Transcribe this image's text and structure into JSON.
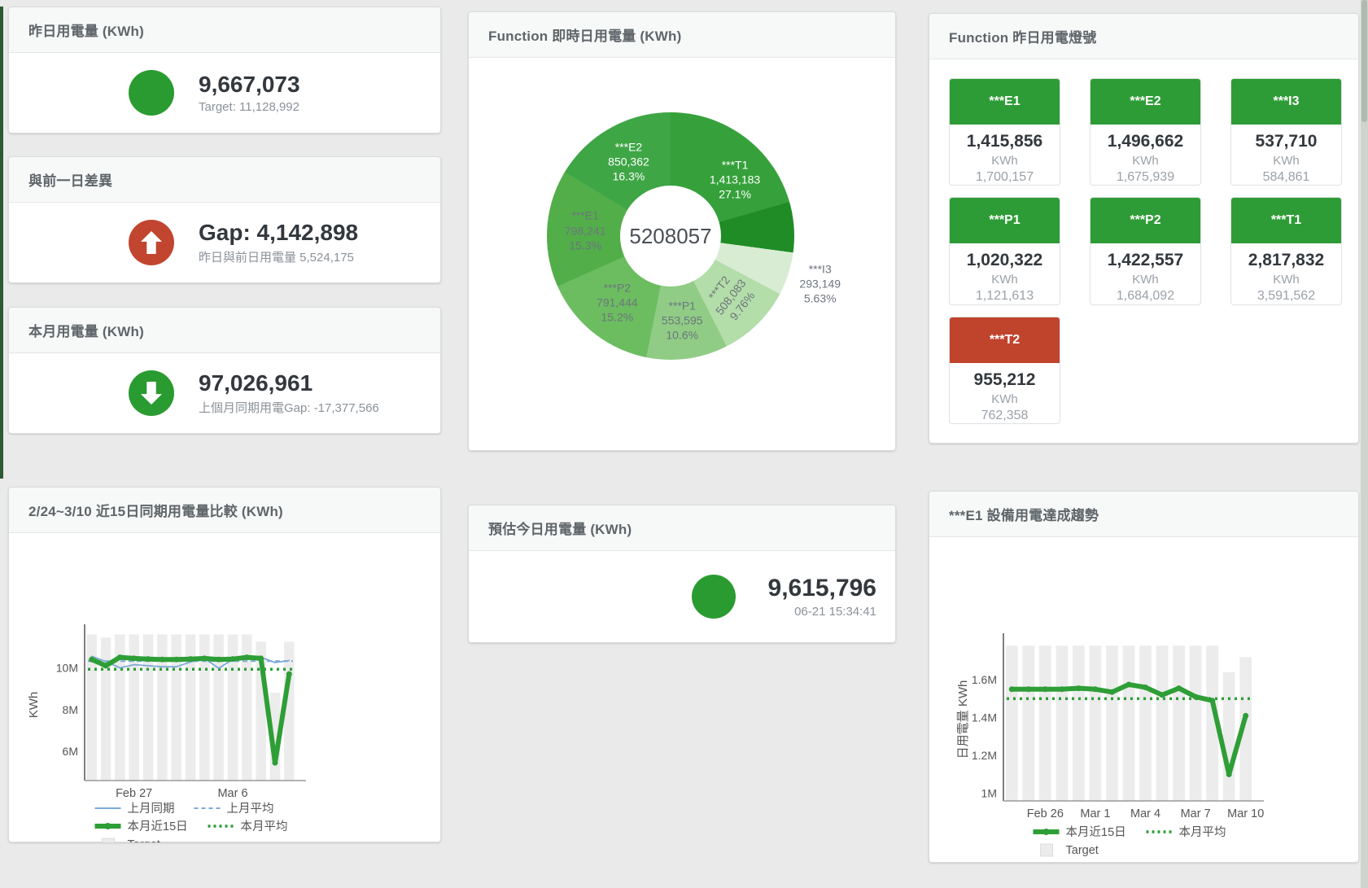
{
  "page": {
    "background": "#e9eae9",
    "accent_color": "#2c5a33",
    "status_green": "#2a9b30",
    "status_red": "#c1452f"
  },
  "kpi_cards": [
    {
      "id": "yesterday",
      "title": "昨日用電量 (KWh)",
      "value": "9,667,073",
      "subtext": "Target: 11,128,992",
      "circle_color": "#2a9b30",
      "icon": "none"
    },
    {
      "id": "gap",
      "title": "與前一日差異",
      "value": "Gap: 4,142,898",
      "subtext": "昨日與前日用電量 5,524,175",
      "circle_color": "#c1452f",
      "icon": "arrow-up"
    },
    {
      "id": "month",
      "title": "本月用電量 (KWh)",
      "value": "97,026,961",
      "subtext": "上個月同期用電Gap: -17,377,566",
      "circle_color": "#2a9b30",
      "icon": "arrow-down"
    },
    {
      "id": "estimate",
      "title": "預估今日用電量 (KWh)",
      "value": "9,615,796",
      "subtext": "06-21 15:34:41",
      "circle_color": "#2a9b30",
      "icon": "none"
    }
  ],
  "lights": {
    "title": "Function 昨日用電燈號",
    "status_colors": {
      "green": "#2e9c36",
      "red": "#c0432c"
    },
    "tiles": [
      {
        "label": "***E1",
        "value": "1,415,856",
        "unit": "KWh",
        "target": "1,700,157",
        "status": "green"
      },
      {
        "label": "***E2",
        "value": "1,496,662",
        "unit": "KWh",
        "target": "1,675,939",
        "status": "green"
      },
      {
        "label": "***I3",
        "value": "537,710",
        "unit": "KWh",
        "target": "584,861",
        "status": "green"
      },
      {
        "label": "***P1",
        "value": "1,020,322",
        "unit": "KWh",
        "target": "1,121,613",
        "status": "green"
      },
      {
        "label": "***P2",
        "value": "1,422,557",
        "unit": "KWh",
        "target": "1,684,092",
        "status": "green"
      },
      {
        "label": "***T1",
        "value": "2,817,832",
        "unit": "KWh",
        "target": "3,591,562",
        "status": "green"
      },
      {
        "label": "***T2",
        "value": "955,212",
        "unit": "KWh",
        "target": "762,358",
        "status": "red"
      }
    ]
  },
  "chart_data": [
    {
      "type": "pie",
      "title": "Function 即時日用電量 (KWh)",
      "total_text": "5208057",
      "legend_position": "none",
      "slices": [
        {
          "name": "***T1",
          "value": 1413183,
          "value_text": "1,413,183",
          "pct": "27.1%",
          "color": "#36a13b",
          "shade_from_deg": 74,
          "shade_color": "#1f8c26",
          "label_color": "#ffffff"
        },
        {
          "name": "***I3",
          "value": 293149,
          "value_text": "293,149",
          "pct": "5.63%",
          "color": "#d7ecd2",
          "label_color": "#6d757d",
          "label_outside": true
        },
        {
          "name": "***T2",
          "value": 508083,
          "value_text": "508,083",
          "pct": "9.76%",
          "color": "#b3dda9",
          "label_color": "#6d757d",
          "rotate": -52
        },
        {
          "name": "***P1",
          "value": 553595,
          "value_text": "553,595",
          "pct": "10.6%",
          "color": "#90cc85",
          "label_color": "#6d757d"
        },
        {
          "name": "***P2",
          "value": 791444,
          "value_text": "791,444",
          "pct": "15.2%",
          "color": "#6cbd60",
          "label_color": "#6d757d"
        },
        {
          "name": "***E1",
          "value": 798241,
          "value_text": "798,241",
          "pct": "15.3%",
          "color": "#52ae49",
          "label_color": "#6d757d"
        },
        {
          "name": "***E2",
          "value": 850362,
          "value_text": "850,362",
          "pct": "16.3%",
          "color": "#3fa646",
          "label_color": "#ffffff"
        }
      ]
    },
    {
      "type": "line",
      "title": "2/24~3/10 近15日同期用電量比較 (KWh)",
      "ylabel": "KWh",
      "unit": "M",
      "ylim": [
        4.6,
        11.85
      ],
      "grid": false,
      "yticks": [
        {
          "v": 10,
          "label": "10M"
        },
        {
          "v": 8,
          "label": "8M"
        },
        {
          "v": 6,
          "label": "6M"
        }
      ],
      "xticks": [
        {
          "index": 3,
          "label": "Feb 27"
        },
        {
          "index": 10,
          "label": "Mar 6"
        }
      ],
      "series": [
        {
          "name": "Target",
          "kind": "bar",
          "color": "#ececec",
          "values": [
            11.6,
            11.45,
            11.6,
            11.6,
            11.6,
            11.6,
            11.6,
            11.6,
            11.6,
            11.6,
            11.6,
            11.6,
            11.25,
            8.8,
            11.25
          ]
        },
        {
          "name": "上月平均",
          "kind": "avg",
          "style": "dashed",
          "color": "#7aa9d8",
          "value": 10.32
        },
        {
          "name": "本月平均",
          "kind": "avg",
          "style": "dotted",
          "color": "#2e9e36",
          "value": 9.93
        },
        {
          "name": "上月同期",
          "kind": "line",
          "style": "solid-thin",
          "color": "#7aa9d8",
          "values": [
            10.55,
            10.3,
            10.0,
            10.15,
            10.1,
            10.05,
            10.05,
            10.28,
            10.45,
            9.98,
            10.4,
            10.5,
            10.5,
            10.25,
            10.35
          ]
        },
        {
          "name": "本月近15日",
          "kind": "line",
          "style": "solid-thick",
          "color": "#2e9e36",
          "values": [
            10.4,
            10.1,
            10.5,
            10.45,
            10.42,
            10.4,
            10.4,
            10.42,
            10.45,
            10.4,
            10.42,
            10.5,
            10.45,
            5.45,
            9.7
          ]
        }
      ],
      "legend_rows": [
        [
          {
            "label": "上月同期",
            "style": "solid-thin",
            "color": "#7aa9d8"
          },
          {
            "label": "上月平均",
            "style": "dashed",
            "color": "#7aa9d8"
          }
        ],
        [
          {
            "label": "本月近15日",
            "style": "solid-thick",
            "color": "#2e9e36"
          },
          {
            "label": "本月平均",
            "style": "dotted",
            "color": "#2e9e36"
          }
        ],
        [
          {
            "label": "Target",
            "style": "square",
            "color": "#ececec"
          }
        ]
      ]
    },
    {
      "type": "line",
      "title": "***E1 設備用電達成趨勢",
      "ylabel": "日用電量 KWh",
      "unit": "M",
      "ylim": [
        0.96,
        1.82
      ],
      "grid": false,
      "yticks": [
        {
          "v": 1.6,
          "label": "1.6M"
        },
        {
          "v": 1.4,
          "label": "1.4M"
        },
        {
          "v": 1.2,
          "label": "1.2M"
        },
        {
          "v": 1.0,
          "label": "1M"
        }
      ],
      "xticks": [
        {
          "index": 2,
          "label": "Feb 26"
        },
        {
          "index": 5,
          "label": "Mar 1"
        },
        {
          "index": 8,
          "label": "Mar 4"
        },
        {
          "index": 11,
          "label": "Mar 7"
        },
        {
          "index": 14,
          "label": "Mar 10"
        }
      ],
      "series": [
        {
          "name": "Target",
          "kind": "bar",
          "color": "#ececec",
          "values": [
            1.78,
            1.78,
            1.78,
            1.78,
            1.78,
            1.78,
            1.78,
            1.78,
            1.78,
            1.78,
            1.78,
            1.78,
            1.78,
            1.64,
            1.72
          ]
        },
        {
          "name": "本月平均",
          "kind": "avg",
          "style": "dotted",
          "color": "#2e9e36",
          "value": 1.5
        },
        {
          "name": "本月近15日",
          "kind": "line",
          "style": "solid-thick",
          "color": "#2e9e36",
          "values": [
            1.55,
            1.55,
            1.55,
            1.55,
            1.555,
            1.55,
            1.535,
            1.575,
            1.56,
            1.52,
            1.555,
            1.51,
            1.49,
            1.1,
            1.41
          ]
        }
      ],
      "legend_rows": [
        [
          {
            "label": "本月近15日",
            "style": "solid-thick",
            "color": "#2e9e36"
          },
          {
            "label": "本月平均",
            "style": "dotted",
            "color": "#2e9e36"
          }
        ],
        [
          {
            "label": "Target",
            "style": "square",
            "color": "#ececec"
          }
        ]
      ]
    }
  ]
}
